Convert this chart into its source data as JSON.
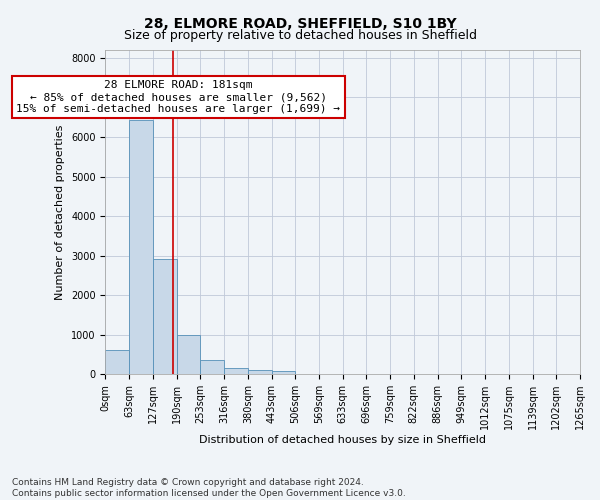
{
  "title": "28, ELMORE ROAD, SHEFFIELD, S10 1BY",
  "subtitle": "Size of property relative to detached houses in Sheffield",
  "xlabel": "Distribution of detached houses by size in Sheffield",
  "ylabel": "Number of detached properties",
  "bar_color": "#c8d8e8",
  "bar_edge_color": "#5590b8",
  "grid_color": "#c0c8d8",
  "background_color": "#f0f4f8",
  "vline_x": 181,
  "vline_color": "#cc0000",
  "annotation_text": "28 ELMORE ROAD: 181sqm\n← 85% of detached houses are smaller (9,562)\n15% of semi-detached houses are larger (1,699) →",
  "annotation_box_color": "#ffffff",
  "annotation_box_edge": "#cc0000",
  "footer_line1": "Contains HM Land Registry data © Crown copyright and database right 2024.",
  "footer_line2": "Contains public sector information licensed under the Open Government Licence v3.0.",
  "bin_edges": [
    0,
    63,
    127,
    190,
    253,
    316,
    380,
    443,
    506,
    569,
    633,
    696,
    759,
    822,
    886,
    949,
    1012,
    1075,
    1139,
    1202,
    1265
  ],
  "bar_heights": [
    620,
    6430,
    2920,
    990,
    370,
    160,
    100,
    80,
    0,
    0,
    0,
    0,
    0,
    0,
    0,
    0,
    0,
    0,
    0,
    0
  ],
  "ylim": [
    0,
    8200
  ],
  "yticks": [
    0,
    1000,
    2000,
    3000,
    4000,
    5000,
    6000,
    7000,
    8000
  ],
  "title_fontsize": 10,
  "subtitle_fontsize": 9,
  "axis_label_fontsize": 8,
  "tick_fontsize": 7,
  "annotation_fontsize": 8,
  "footer_fontsize": 6.5
}
